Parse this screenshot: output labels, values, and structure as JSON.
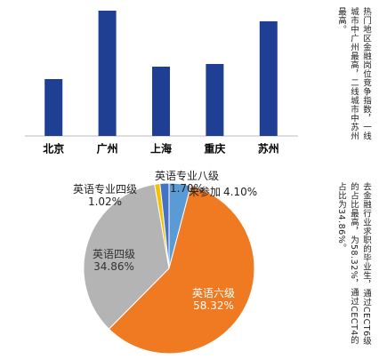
{
  "chart_data": [
    {
      "type": "bar",
      "categories": [
        "北京",
        "广州",
        "上海",
        "重庆",
        "苏州"
      ],
      "values": [
        64,
        141,
        78,
        81,
        129
      ],
      "color": "#1f3f94",
      "ylim": [
        0,
        150
      ]
    },
    {
      "type": "pie",
      "categories": [
        "未参加",
        "英语六级",
        "英语四级",
        "英语专业四级",
        "英语专业八级"
      ],
      "values": [
        4.1,
        58.32,
        34.86,
        1.02,
        1.7
      ],
      "value_labels": [
        "4.10%",
        "58.32%",
        "34.86%",
        "1.02%",
        "1.70%"
      ],
      "colors": [
        "#5b9bd5",
        "#f07a22",
        "#b4b4b4",
        "#f2c200",
        "#4472c4"
      ]
    }
  ],
  "notes": [
    "热门地区金融岗位竞争指数，一线城市中广州最高，二线城市中苏州最高。",
    "去金融行业求职的毕业生，通过CECT6级的占比最高，为58.32%，通过CECT4的占比为34.86%。"
  ]
}
